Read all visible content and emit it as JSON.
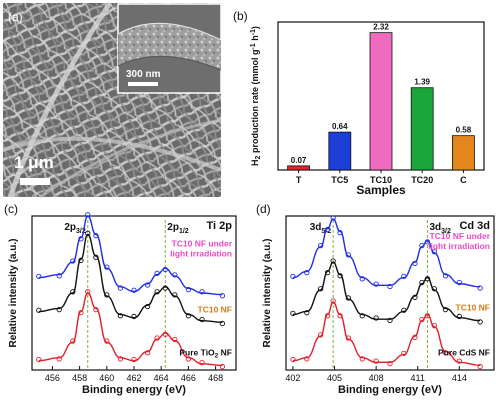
{
  "figure": {
    "panel_a": {
      "label": "(a)",
      "scale_main": "1 μm",
      "scale_inset": "300 nm"
    }
  },
  "chart_data": [
    {
      "panel": "(b)",
      "type": "bar",
      "categories": [
        "T",
        "TC5",
        "TC10",
        "TC20",
        "C"
      ],
      "values": [
        0.07,
        0.64,
        2.32,
        1.39,
        0.58
      ],
      "value_labels": [
        "0.07",
        "0.64",
        "2.32",
        "1.39",
        "0.58"
      ],
      "colors": [
        "#e8212b",
        "#1c3fd6",
        "#f06bbf",
        "#1aa63a",
        "#e3861c"
      ],
      "xlabel": "Samples",
      "ylabel_parts": [
        "H",
        "2",
        " production rate (mmol g",
        "-1",
        " h",
        "-1",
        ")"
      ],
      "ylim": [
        0,
        2.5
      ]
    },
    {
      "panel": "(c)",
      "type": "line",
      "title": "Ti 2p",
      "xlabel": "Binding energy (eV)",
      "ylabel": "Relative intensity (a.u.)",
      "xlim": [
        454.5,
        469.5
      ],
      "x_ticks": [
        456,
        458,
        460,
        462,
        464,
        466,
        468
      ],
      "peak_lines_x": [
        458.6,
        464.3
      ],
      "peak_labels": [
        {
          "main": "2p",
          "sub": "3/2"
        },
        {
          "main": "2p",
          "sub": "1/2"
        }
      ],
      "series": [
        {
          "name": "TC10 NF under light irradiation",
          "label_lines": [
            "TC10 NF under",
            "light irradiation"
          ],
          "color": "#1f2ee8",
          "label_color": "#e84bc5",
          "x": [
            455.0,
            456.5,
            457.5,
            458.1,
            458.6,
            459.2,
            460.0,
            461.0,
            462.0,
            463.0,
            463.7,
            464.3,
            465.0,
            466.0,
            467.0,
            468.5
          ],
          "y": [
            0.6,
            0.62,
            0.7,
            0.86,
            1.0,
            0.88,
            0.66,
            0.54,
            0.51,
            0.56,
            0.62,
            0.66,
            0.61,
            0.53,
            0.5,
            0.49
          ]
        },
        {
          "name": "TC10 NF",
          "label_lines": [
            "TC10 NF"
          ],
          "color": "#111111",
          "label_color": "#e07a12",
          "x": [
            455.0,
            456.5,
            457.5,
            458.1,
            458.6,
            459.2,
            460.0,
            461.0,
            462.0,
            463.0,
            463.7,
            464.3,
            465.0,
            466.0,
            467.0,
            468.5
          ],
          "y": [
            0.38,
            0.4,
            0.5,
            0.72,
            0.88,
            0.74,
            0.48,
            0.36,
            0.34,
            0.42,
            0.5,
            0.54,
            0.48,
            0.36,
            0.32,
            0.31
          ]
        },
        {
          "name": "Pure TiO2 NF",
          "label_lines": [
            "Pure TiO",
            "2",
            " NF"
          ],
          "color": "#e3202b",
          "label_color": "#111111",
          "x": [
            455.0,
            456.5,
            457.5,
            458.1,
            458.6,
            459.2,
            460.0,
            461.0,
            462.0,
            463.0,
            463.7,
            464.3,
            465.0,
            466.0,
            467.0,
            468.5
          ],
          "y": [
            0.06,
            0.08,
            0.18,
            0.38,
            0.5,
            0.4,
            0.18,
            0.08,
            0.06,
            0.12,
            0.2,
            0.24,
            0.19,
            0.08,
            0.04,
            0.03
          ]
        }
      ]
    },
    {
      "panel": "(d)",
      "type": "line",
      "title": "Cd 3d",
      "xlabel": "Binding energy (eV)",
      "ylabel": "Relative intensity (a.u.)",
      "xlim": [
        401.5,
        416.5
      ],
      "x_ticks": [
        402,
        405,
        408,
        411,
        414
      ],
      "peak_lines_x": [
        404.9,
        411.7
      ],
      "peak_labels": [
        {
          "main": "3d",
          "sub": "5/2"
        },
        {
          "main": "3d",
          "sub": "3/2"
        }
      ],
      "series": [
        {
          "name": "TC10 NF under light irradiation",
          "label_lines": [
            "TC10 NF under",
            "light irradiation"
          ],
          "color": "#1f2ee8",
          "label_color": "#e84bc5",
          "x": [
            402.0,
            403.0,
            404.0,
            404.5,
            404.9,
            405.4,
            406.0,
            407.0,
            408.0,
            409.0,
            410.0,
            410.8,
            411.3,
            411.7,
            412.2,
            413.0,
            414.0,
            415.5
          ],
          "y": [
            0.6,
            0.64,
            0.8,
            0.92,
            0.98,
            0.9,
            0.74,
            0.6,
            0.55,
            0.55,
            0.6,
            0.7,
            0.8,
            0.84,
            0.76,
            0.62,
            0.56,
            0.54
          ]
        },
        {
          "name": "TC10 NF",
          "label_lines": [
            "TC10 NF"
          ],
          "color": "#111111",
          "label_color": "#e07a12",
          "x": [
            402.0,
            403.0,
            404.0,
            404.5,
            404.9,
            405.4,
            406.0,
            407.0,
            408.0,
            409.0,
            410.0,
            410.8,
            411.3,
            411.7,
            412.2,
            413.0,
            414.0,
            415.5
          ],
          "y": [
            0.36,
            0.38,
            0.52,
            0.64,
            0.7,
            0.62,
            0.46,
            0.36,
            0.33,
            0.33,
            0.38,
            0.48,
            0.56,
            0.6,
            0.52,
            0.4,
            0.34,
            0.32
          ]
        },
        {
          "name": "Pure CdS NF",
          "label_lines": [
            "Pure CdS NF"
          ],
          "color": "#e3202b",
          "label_color": "#111111",
          "x": [
            402.0,
            403.0,
            404.0,
            404.5,
            404.9,
            405.4,
            406.0,
            407.0,
            408.0,
            409.0,
            410.0,
            410.8,
            411.3,
            411.7,
            412.2,
            413.0,
            414.0,
            415.5
          ],
          "y": [
            0.06,
            0.08,
            0.22,
            0.36,
            0.44,
            0.36,
            0.2,
            0.08,
            0.05,
            0.05,
            0.1,
            0.22,
            0.32,
            0.36,
            0.28,
            0.12,
            0.05,
            0.03
          ]
        }
      ]
    }
  ]
}
